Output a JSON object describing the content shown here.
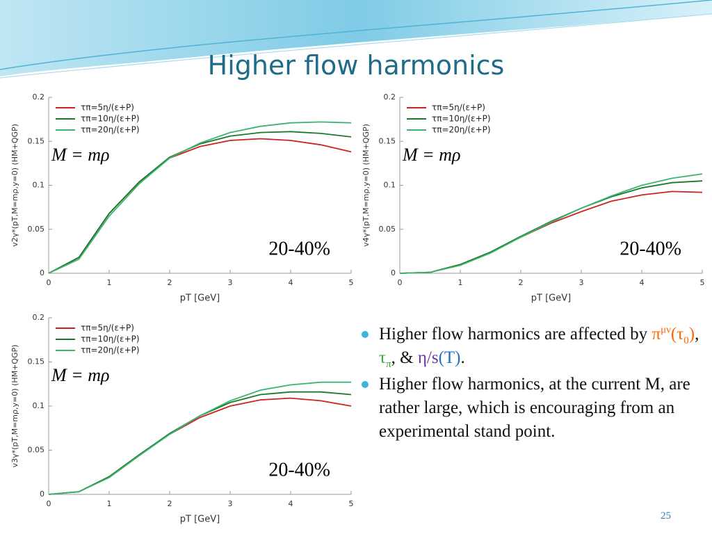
{
  "slide": {
    "title": "Higher flow harmonics",
    "page": "25",
    "bullets": [
      [
        {
          "text": "Higher flow harmonics are affected by "
        },
        {
          "text": "π",
          "color": "#ff6600"
        },
        {
          "text": "μν",
          "color": "#ff6600",
          "pos": "sup"
        },
        {
          "text": "(τ",
          "color": "#ff6600"
        },
        {
          "text": "0",
          "color": "#ff6600",
          "pos": "sub"
        },
        {
          "text": ")",
          "color": "#ff6600"
        },
        {
          "text": ", "
        },
        {
          "text": "τ",
          "color": "#33aa33"
        },
        {
          "text": "π",
          "color": "#33aa33",
          "pos": "sub"
        },
        {
          "text": ", & "
        },
        {
          "text": "η/s",
          "color": "#7030a0"
        },
        {
          "text": "(T)",
          "color": "#1f6fd0"
        },
        {
          "text": "."
        }
      ],
      [
        {
          "text": "Higher flow harmonics, at the current M, are rather large, which is encouraging from an experimental stand point."
        }
      ]
    ]
  },
  "chart_data": [
    {
      "type": "line",
      "ylabel": "v2γ*(pT,M=mρ,y=0) (HM+QGP)",
      "xlabel": "pT [GeV]",
      "annotations": [
        "M = mρ",
        "20-40%"
      ],
      "x": [
        0,
        0.5,
        1,
        1.5,
        2,
        2.5,
        3,
        3.5,
        4,
        4.5,
        5
      ],
      "xlim": [
        0,
        5
      ],
      "xticks": [
        0,
        1,
        2,
        3,
        4,
        5
      ],
      "ylim": [
        0,
        0.2
      ],
      "yticks": [
        0,
        0.05,
        0.1,
        0.15,
        0.2
      ],
      "grid": false,
      "legend": "top-left",
      "series": [
        {
          "name": "τπ=5η/(ε+P)",
          "color": "#cc2222",
          "values": [
            0,
            0.018,
            0.068,
            0.104,
            0.131,
            0.144,
            0.151,
            0.153,
            0.151,
            0.146,
            0.138
          ]
        },
        {
          "name": "τπ=10η/(ε+P)",
          "color": "#1a7a2a",
          "values": [
            0,
            0.018,
            0.068,
            0.104,
            0.132,
            0.147,
            0.156,
            0.16,
            0.161,
            0.159,
            0.155
          ]
        },
        {
          "name": "τπ=20η/(ε+P)",
          "color": "#3cb371",
          "values": [
            0,
            0.016,
            0.065,
            0.102,
            0.131,
            0.148,
            0.16,
            0.167,
            0.171,
            0.172,
            0.171
          ]
        }
      ]
    },
    {
      "type": "line",
      "ylabel": "v4γ*(pT,M=mρ,y=0) (HM+QGP)",
      "xlabel": "pT [GeV]",
      "annotations": [
        "M = mρ",
        "20-40%"
      ],
      "x": [
        0,
        0.5,
        1,
        1.5,
        2,
        2.5,
        3,
        3.5,
        4,
        4.5,
        5
      ],
      "xlim": [
        0,
        5
      ],
      "xticks": [
        0,
        1,
        2,
        3,
        4,
        5
      ],
      "ylim": [
        0,
        0.2
      ],
      "yticks": [
        0,
        0.05,
        0.1,
        0.15,
        0.2
      ],
      "grid": false,
      "legend": "top-left",
      "series": [
        {
          "name": "τπ=5η/(ε+P)",
          "color": "#cc2222",
          "values": [
            0,
            0.001,
            0.01,
            0.024,
            0.041,
            0.057,
            0.07,
            0.082,
            0.089,
            0.093,
            0.092
          ]
        },
        {
          "name": "τπ=10η/(ε+P)",
          "color": "#1a7a2a",
          "values": [
            0,
            0.001,
            0.01,
            0.024,
            0.042,
            0.059,
            0.074,
            0.087,
            0.097,
            0.103,
            0.105
          ]
        },
        {
          "name": "τπ=20η/(ε+P)",
          "color": "#3cb371",
          "values": [
            0,
            0.001,
            0.009,
            0.023,
            0.041,
            0.058,
            0.074,
            0.088,
            0.1,
            0.108,
            0.113
          ]
        }
      ]
    },
    {
      "type": "line",
      "ylabel": "v3γ*(pT,M=mρ,y=0) (HM+QGP)",
      "xlabel": "pT [GeV]",
      "annotations": [
        "M = mρ",
        "20-40%"
      ],
      "x": [
        0,
        0.5,
        1,
        1.5,
        2,
        2.5,
        3,
        3.5,
        4,
        4.5,
        5
      ],
      "xlim": [
        0,
        5
      ],
      "xticks": [
        0,
        1,
        2,
        3,
        4,
        5
      ],
      "ylim": [
        0,
        0.2
      ],
      "yticks": [
        0,
        0.05,
        0.1,
        0.15,
        0.2
      ],
      "grid": false,
      "legend": "top-left",
      "series": [
        {
          "name": "τπ=5η/(ε+P)",
          "color": "#cc2222",
          "values": [
            0,
            0.003,
            0.02,
            0.045,
            0.068,
            0.087,
            0.1,
            0.107,
            0.109,
            0.106,
            0.1
          ]
        },
        {
          "name": "τπ=10η/(ε+P)",
          "color": "#1a7a2a",
          "values": [
            0,
            0.003,
            0.02,
            0.045,
            0.069,
            0.089,
            0.104,
            0.113,
            0.116,
            0.116,
            0.113
          ]
        },
        {
          "name": "τπ=20η/(ε+P)",
          "color": "#3cb371",
          "values": [
            0,
            0.003,
            0.019,
            0.044,
            0.068,
            0.089,
            0.106,
            0.118,
            0.124,
            0.127,
            0.127
          ]
        }
      ]
    }
  ]
}
